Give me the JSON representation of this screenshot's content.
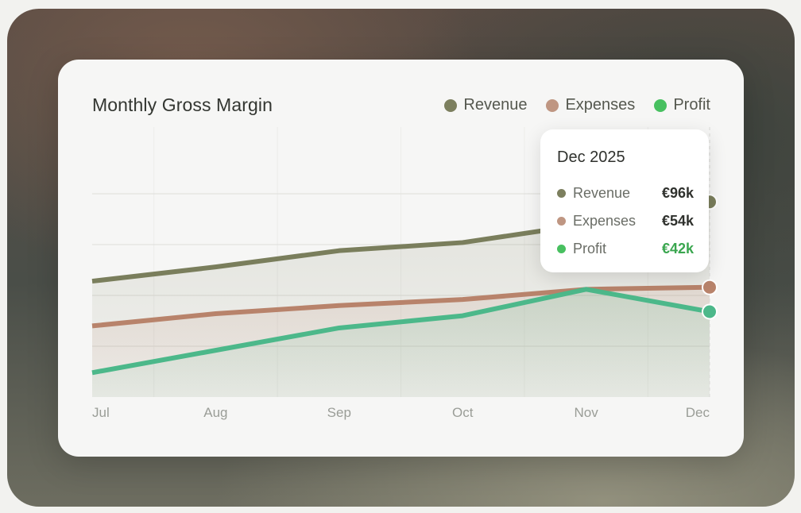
{
  "card": {
    "title": "Monthly Gross Margin"
  },
  "legend": [
    {
      "label": "Revenue",
      "color": "#7c7f5e"
    },
    {
      "label": "Expenses",
      "color": "#bf9682"
    },
    {
      "label": "Profit",
      "color": "#48c060"
    }
  ],
  "tooltip": {
    "title": "Dec 2025",
    "rows": [
      {
        "label": "Revenue",
        "value": "€96k",
        "color": "#7c7f5e",
        "value_color": "#2f312d"
      },
      {
        "label": "Expenses",
        "value": "€54k",
        "color": "#bf9682",
        "value_color": "#2f312d"
      },
      {
        "label": "Profit",
        "value": "€42k",
        "color": "#48c060",
        "value_color": "#3aa64f"
      }
    ]
  },
  "chart_data": {
    "type": "line",
    "title": "Monthly Gross Margin",
    "categories": [
      "Jul",
      "Aug",
      "Sep",
      "Oct",
      "Nov",
      "Dec"
    ],
    "series": [
      {
        "name": "Revenue",
        "color": "#7a7e5c",
        "values": [
          57,
          64,
          72,
          76,
          85,
          96
        ]
      },
      {
        "name": "Expenses",
        "color": "#b8836b",
        "values": [
          35,
          41,
          45,
          48,
          53,
          54
        ]
      },
      {
        "name": "Profit",
        "color": "#4cb88a",
        "values": [
          12,
          23,
          34,
          40,
          53,
          42
        ]
      }
    ],
    "ylim": [
      0,
      125
    ],
    "grid": true,
    "legend_position": "top-right",
    "highlight_category": "Dec"
  }
}
